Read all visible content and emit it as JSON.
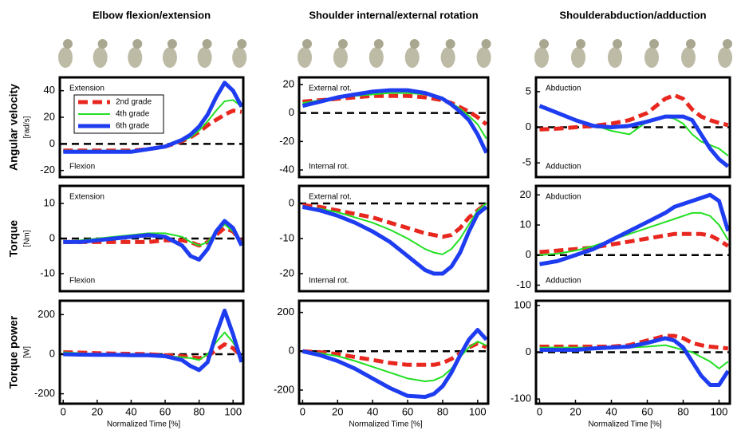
{
  "chart_data": [
    {
      "type": "line",
      "title": "Elbow flexion/extension",
      "ylabel": "Angular velocity",
      "yunit": "[rad/s]",
      "annotations": [
        "Extension",
        "Flexion"
      ],
      "legend": "upper left",
      "hline": 0,
      "x": [
        0,
        10,
        20,
        30,
        40,
        50,
        60,
        70,
        75,
        80,
        85,
        90,
        95,
        100,
        105
      ],
      "xlim": [
        -2,
        106
      ],
      "ylim": [
        -25,
        50
      ],
      "yticks": [
        -20,
        0,
        20,
        40
      ],
      "series": [
        {
          "name": "2nd grade",
          "color": "#e8271f",
          "values": [
            -5,
            -5,
            -5,
            -5,
            -5,
            -4,
            -2,
            2,
            5,
            9,
            14,
            18,
            22,
            25,
            24
          ]
        },
        {
          "name": "4th grade",
          "color": "#22e022",
          "values": [
            -5,
            -5,
            -5,
            -5,
            -5,
            -4,
            -2,
            2,
            5,
            10,
            17,
            25,
            32,
            33,
            28
          ]
        },
        {
          "name": "6th grade",
          "color": "#1e3cf0",
          "values": [
            -6,
            -6,
            -6,
            -6,
            -6,
            -4,
            -2,
            3,
            7,
            13,
            22,
            35,
            46,
            40,
            28
          ]
        }
      ]
    },
    {
      "type": "line",
      "title": "Shoulder internal/external rotation",
      "annotations": [
        "External rot.",
        "Internal rot."
      ],
      "hline": 0,
      "x": [
        0,
        10,
        20,
        30,
        40,
        50,
        60,
        70,
        75,
        80,
        85,
        90,
        95,
        100,
        105
      ],
      "xlim": [
        -2,
        106
      ],
      "ylim": [
        -45,
        25
      ],
      "yticks": [
        -40,
        -20,
        0,
        20
      ],
      "series": [
        {
          "color": "#e8271f",
          "values": [
            8,
            9,
            10,
            11,
            12,
            12,
            12,
            11,
            10,
            9,
            7,
            4,
            1,
            -3,
            -8
          ]
        },
        {
          "color": "#22e022",
          "values": [
            7,
            9,
            11,
            12,
            13,
            14,
            14,
            13,
            12,
            10,
            7,
            3,
            -2,
            -8,
            -18
          ]
        },
        {
          "color": "#1e3cf0",
          "values": [
            5,
            8,
            11,
            13,
            15,
            16,
            16,
            14,
            12,
            10,
            6,
            1,
            -5,
            -15,
            -28
          ]
        }
      ]
    },
    {
      "type": "line",
      "title": "Shoulderabduction/adduction",
      "annotations": [
        "Abduction",
        "Adduction"
      ],
      "hline": 0,
      "x": [
        0,
        10,
        20,
        30,
        40,
        50,
        60,
        70,
        75,
        80,
        85,
        90,
        95,
        100,
        105
      ],
      "xlim": [
        -2,
        106
      ],
      "ylim": [
        -7,
        7
      ],
      "yticks": [
        -5,
        0,
        5
      ],
      "series": [
        {
          "color": "#e8271f",
          "values": [
            -0.3,
            -0.2,
            0,
            0.2,
            0.5,
            1,
            2,
            4,
            4.5,
            4,
            2.5,
            1.5,
            1,
            0.6,
            0.3
          ]
        },
        {
          "color": "#22e022",
          "values": [
            2.8,
            2,
            1,
            0.3,
            -0.5,
            -1,
            0.8,
            1.5,
            1.2,
            0.5,
            -1,
            -2,
            -2.5,
            -3,
            -4
          ]
        },
        {
          "color": "#1e3cf0",
          "values": [
            3,
            2,
            1,
            0.2,
            0,
            0.2,
            0.8,
            1.5,
            1.5,
            1.5,
            1,
            -1,
            -3,
            -4.5,
            -5.5
          ]
        }
      ]
    },
    {
      "type": "line",
      "ylabel": "Torque",
      "yunit": "[Nm]",
      "annotations": [
        "Extension",
        "Flexion"
      ],
      "hline": 0,
      "x": [
        0,
        10,
        20,
        30,
        40,
        50,
        60,
        70,
        75,
        80,
        85,
        90,
        95,
        100,
        105
      ],
      "xlim": [
        -2,
        106
      ],
      "ylim": [
        -15,
        15
      ],
      "yticks": [
        -10,
        0,
        10
      ],
      "series": [
        {
          "color": "#e8271f",
          "values": [
            -1,
            -1,
            -1,
            -1,
            -1,
            -1,
            -0.5,
            -0.5,
            -1,
            -2,
            -1,
            1,
            3,
            2,
            -1
          ]
        },
        {
          "color": "#22e022",
          "values": [
            -1,
            -0.5,
            0,
            0.5,
            1,
            1.5,
            1.5,
            0.5,
            -1,
            -2,
            -1,
            2,
            4,
            2,
            -1
          ]
        },
        {
          "color": "#1e3cf0",
          "values": [
            -1,
            -1,
            -0.5,
            0,
            0.5,
            1,
            0.5,
            -2,
            -5,
            -6,
            -3,
            2,
            5,
            3,
            -2
          ]
        }
      ]
    },
    {
      "type": "line",
      "annotations": [
        "External rot.",
        "Internal rot."
      ],
      "hline": 0,
      "x": [
        0,
        10,
        20,
        30,
        40,
        50,
        60,
        70,
        75,
        80,
        85,
        90,
        95,
        100,
        105
      ],
      "xlim": [
        -2,
        106
      ],
      "ylim": [
        -25,
        5
      ],
      "yticks": [
        -20,
        -10,
        0
      ],
      "series": [
        {
          "color": "#e8271f",
          "values": [
            -0.5,
            -1,
            -2,
            -3,
            -4,
            -5.5,
            -7,
            -8.5,
            -9,
            -9.5,
            -9,
            -7,
            -4,
            -2,
            0
          ]
        },
        {
          "color": "#22e022",
          "values": [
            -1,
            -1.5,
            -2.5,
            -4,
            -5.5,
            -7.5,
            -10,
            -13,
            -14,
            -14.5,
            -13,
            -10,
            -6,
            -2,
            0
          ]
        },
        {
          "color": "#1e3cf0",
          "values": [
            -1,
            -2,
            -3.5,
            -5.5,
            -8,
            -11,
            -15,
            -19,
            -20,
            -20,
            -18,
            -14,
            -8,
            -3,
            -1
          ]
        }
      ]
    },
    {
      "type": "line",
      "annotations": [
        "Abduction",
        "Adduction"
      ],
      "hline": 0,
      "x": [
        0,
        10,
        20,
        30,
        40,
        50,
        60,
        70,
        75,
        80,
        85,
        90,
        95,
        100,
        105
      ],
      "xlim": [
        -2,
        106
      ],
      "ylim": [
        -12,
        23
      ],
      "yticks": [
        -10,
        0,
        10,
        20
      ],
      "series": [
        {
          "color": "#e8271f",
          "values": [
            1,
            1.5,
            2,
            2.5,
            3.5,
            4.5,
            5.5,
            6.5,
            7,
            7,
            7,
            7,
            6.5,
            5,
            3
          ]
        },
        {
          "color": "#22e022",
          "values": [
            0,
            0.5,
            1.5,
            3,
            5,
            7,
            9,
            11,
            12,
            13,
            14,
            14,
            13,
            10,
            5
          ]
        },
        {
          "color": "#1e3cf0",
          "values": [
            -3,
            -2,
            0,
            2,
            5,
            8,
            11,
            14,
            16,
            17,
            18,
            19,
            20,
            18,
            8
          ]
        }
      ]
    },
    {
      "type": "line",
      "ylabel": "Torque power",
      "yunit": "[W]",
      "xlabel": "Normalized Time [%]",
      "hline": 0,
      "x": [
        0,
        10,
        20,
        30,
        40,
        50,
        60,
        70,
        75,
        80,
        85,
        90,
        95,
        100,
        105
      ],
      "xlim": [
        -2,
        106
      ],
      "xticks": [
        0,
        20,
        40,
        60,
        80,
        100
      ],
      "ylim": [
        -250,
        270
      ],
      "yticks": [
        -200,
        0,
        200
      ],
      "series": [
        {
          "color": "#e8271f",
          "values": [
            10,
            8,
            5,
            3,
            2,
            0,
            -5,
            -10,
            -15,
            -20,
            -10,
            20,
            50,
            30,
            -10
          ]
        },
        {
          "color": "#22e022",
          "values": [
            10,
            5,
            0,
            -5,
            -5,
            -5,
            -10,
            -15,
            -20,
            -30,
            0,
            60,
            110,
            60,
            -20
          ]
        },
        {
          "color": "#1e3cf0",
          "values": [
            0,
            -2,
            -3,
            -3,
            -5,
            -5,
            -10,
            -30,
            -60,
            -80,
            -40,
            100,
            220,
            100,
            -40
          ]
        }
      ]
    },
    {
      "type": "line",
      "xlabel": "Normalized Time [%]",
      "hline": 0,
      "x": [
        0,
        10,
        20,
        30,
        40,
        50,
        60,
        70,
        75,
        80,
        85,
        90,
        95,
        100,
        105
      ],
      "xlim": [
        -2,
        106
      ],
      "xticks": [
        0,
        20,
        40,
        60,
        80,
        100
      ],
      "ylim": [
        -270,
        260
      ],
      "yticks": [
        -200,
        0,
        200
      ],
      "series": [
        {
          "color": "#e8271f",
          "values": [
            0,
            -5,
            -15,
            -30,
            -45,
            -60,
            -70,
            -70,
            -70,
            -60,
            -40,
            -10,
            20,
            40,
            20
          ]
        },
        {
          "color": "#22e022",
          "values": [
            0,
            -10,
            -25,
            -50,
            -80,
            -110,
            -140,
            -155,
            -150,
            -130,
            -90,
            -30,
            20,
            50,
            30
          ]
        },
        {
          "color": "#1e3cf0",
          "values": [
            0,
            -20,
            -50,
            -90,
            -140,
            -190,
            -230,
            -235,
            -220,
            -180,
            -110,
            -20,
            60,
            110,
            60
          ]
        }
      ]
    },
    {
      "type": "line",
      "xlabel": "Normalized Time [%]",
      "hline": 0,
      "x": [
        0,
        10,
        20,
        30,
        40,
        50,
        60,
        70,
        75,
        80,
        85,
        90,
        95,
        100,
        105
      ],
      "xlim": [
        -2,
        106
      ],
      "xticks": [
        0,
        20,
        40,
        60,
        80,
        100
      ],
      "ylim": [
        -110,
        110
      ],
      "yticks": [
        -100,
        0,
        100
      ],
      "series": [
        {
          "color": "#e8271f",
          "values": [
            12,
            12,
            12,
            12,
            12,
            15,
            25,
            35,
            35,
            30,
            20,
            15,
            12,
            10,
            8
          ]
        },
        {
          "color": "#22e022",
          "values": [
            10,
            10,
            10,
            10,
            10,
            10,
            12,
            15,
            10,
            5,
            0,
            -10,
            -20,
            -35,
            -20
          ]
        },
        {
          "color": "#1e3cf0",
          "values": [
            5,
            5,
            5,
            8,
            10,
            12,
            20,
            30,
            25,
            10,
            -20,
            -50,
            -70,
            -70,
            -40
          ]
        }
      ]
    }
  ]
}
